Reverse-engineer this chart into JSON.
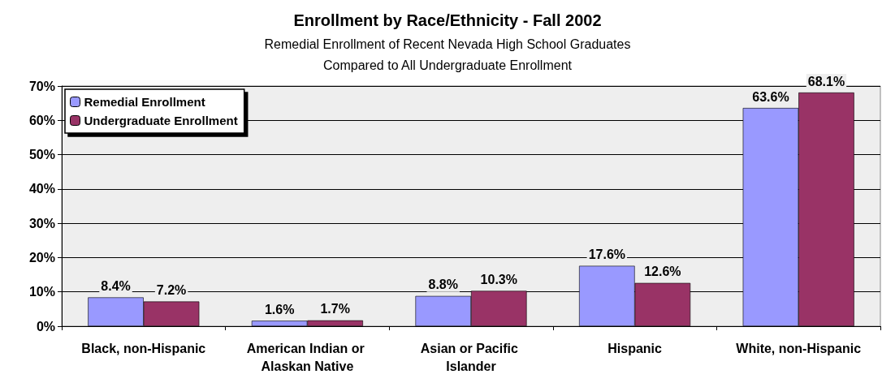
{
  "chart_data": {
    "type": "bar",
    "title": "Enrollment by Race/Ethnicity - Fall 2002",
    "subtitle": "Remedial Enrollment of Recent Nevada High School Graduates\nCompared to All Undergraduate Enrollment",
    "categories": [
      "Black, non-Hispanic",
      "American Indian or Alaskan Native",
      "Asian or Pacific Islander",
      "Hispanic",
      "White, non-Hispanic"
    ],
    "series": [
      {
        "name": "Remedial Enrollment",
        "color": "#9999ff",
        "values": [
          8.4,
          1.6,
          8.8,
          17.6,
          63.6
        ],
        "value_labels": [
          "8.4%",
          "1.6%",
          "8.8%",
          "17.6%",
          "63.6%"
        ]
      },
      {
        "name": "Undergraduate Enrollment",
        "color": "#993366",
        "values": [
          7.2,
          1.7,
          10.3,
          12.6,
          68.1
        ],
        "value_labels": [
          "7.2%",
          "1.7%",
          "10.3%",
          "12.6%",
          "68.1%"
        ]
      }
    ],
    "ylim": [
      0,
      70
    ],
    "yticks": [
      {
        "value": 0,
        "label": "0%"
      },
      {
        "value": 10,
        "label": "10%"
      },
      {
        "value": 20,
        "label": "20%"
      },
      {
        "value": 30,
        "label": "30%"
      },
      {
        "value": 40,
        "label": "40%"
      },
      {
        "value": 50,
        "label": "50%"
      },
      {
        "value": 60,
        "label": "60%"
      },
      {
        "value": 70,
        "label": "70%"
      }
    ],
    "grid": "y",
    "legend": "top left"
  }
}
